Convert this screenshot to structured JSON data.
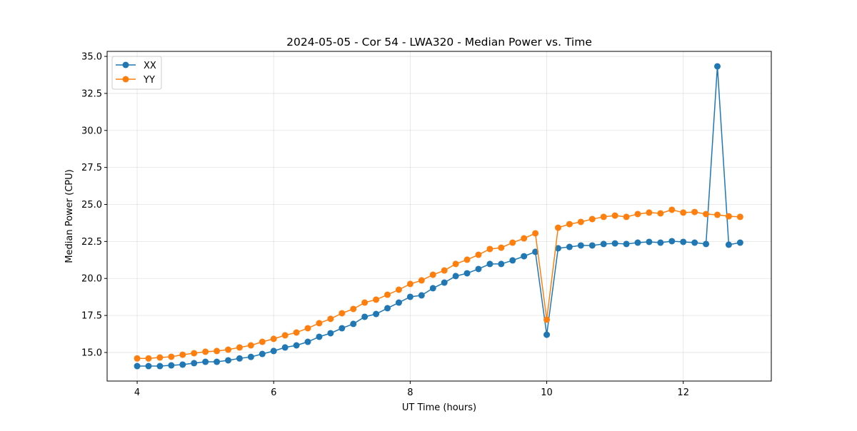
{
  "chart_data": {
    "type": "line",
    "title": "2024-05-05 - Cor 54 - LWA320 - Median Power vs. Time",
    "xlabel": "UT Time (hours)",
    "ylabel": "Median Power (CPU)",
    "xlim": [
      3.56,
      13.29
    ],
    "ylim": [
      13.07,
      35.34
    ],
    "xticks": [
      4,
      6,
      8,
      10,
      12
    ],
    "xtick_labels": [
      "4",
      "6",
      "8",
      "10",
      "12"
    ],
    "yticks": [
      15,
      17.5,
      20,
      22.5,
      25,
      27.5,
      30,
      32.5,
      35
    ],
    "ytick_labels": [
      "15.0",
      "17.5",
      "20.0",
      "22.5",
      "25.0",
      "27.5",
      "30.0",
      "32.5",
      "35.0"
    ],
    "grid": true,
    "legend_position": "upper-left",
    "x_start": 4,
    "x_step": 0.16667,
    "series": [
      {
        "name": "XX",
        "color": "#1f77b4",
        "values": [
          14.08,
          14.08,
          14.08,
          14.13,
          14.18,
          14.28,
          14.37,
          14.37,
          14.47,
          14.6,
          14.7,
          14.9,
          15.1,
          15.34,
          15.48,
          15.72,
          16.06,
          16.3,
          16.64,
          16.93,
          17.41,
          17.6,
          17.99,
          18.37,
          18.76,
          18.86,
          19.34,
          19.72,
          20.16,
          20.35,
          20.64,
          20.98,
          20.98,
          21.22,
          21.5,
          21.8,
          16.2,
          22.04,
          22.13,
          22.23,
          22.23,
          22.33,
          22.37,
          22.33,
          22.42,
          22.47,
          22.42,
          22.52,
          22.47,
          22.42,
          22.33,
          34.33,
          22.28,
          22.42
        ]
      },
      {
        "name": "YY",
        "color": "#ff7f0e",
        "values": [
          14.6,
          14.6,
          14.66,
          14.71,
          14.85,
          14.95,
          15.05,
          15.1,
          15.19,
          15.34,
          15.48,
          15.72,
          15.92,
          16.16,
          16.35,
          16.64,
          16.98,
          17.27,
          17.65,
          17.94,
          18.37,
          18.57,
          18.9,
          19.24,
          19.63,
          19.87,
          20.25,
          20.54,
          20.98,
          21.27,
          21.6,
          21.99,
          22.08,
          22.42,
          22.71,
          23.05,
          17.22,
          23.43,
          23.67,
          23.82,
          24.01,
          24.16,
          24.25,
          24.16,
          24.35,
          24.45,
          24.4,
          24.64,
          24.45,
          24.49,
          24.35,
          24.3,
          24.2,
          24.16
        ]
      }
    ]
  }
}
